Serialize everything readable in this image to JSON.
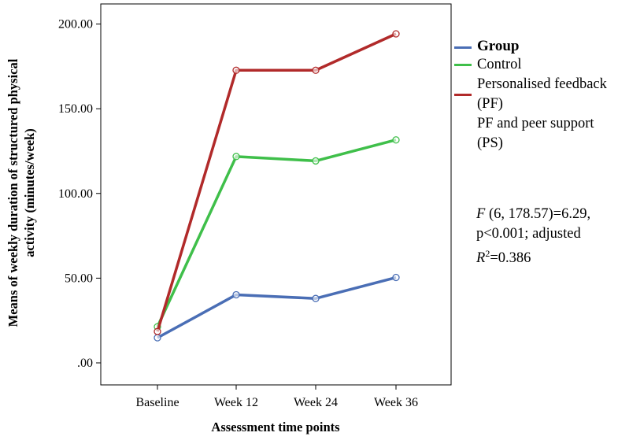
{
  "chart_data": {
    "type": "line",
    "categories": [
      "Baseline",
      "Week 12",
      "Week 24",
      "Week 36"
    ],
    "series": [
      {
        "name": "Control",
        "color": "#4a6eb5",
        "values": [
          14.8,
          40.2,
          38.0,
          50.4
        ]
      },
      {
        "name": "Personalised feedback (PF)",
        "color": "#3fbf4a",
        "values": [
          21.3,
          121.8,
          119.2,
          131.6
        ]
      },
      {
        "name": "PF and peer support (PS)",
        "color": "#b12a2a",
        "values": [
          18.5,
          172.7,
          172.7,
          194.2
        ]
      }
    ],
    "xlabel": "Assessment time points",
    "ylabel": "Means of weekly duration of structured physical activity (minutes/week)",
    "ylabel_lines": [
      "Means of weekly duration of structured physical",
      "activity (minutes/week)"
    ],
    "ylim": [
      0,
      200
    ],
    "yticks": [
      ".00",
      "50.00",
      "100.00",
      "150.00",
      "200.00"
    ],
    "legend_title": "Group",
    "legend_position": "right",
    "grid": false
  },
  "stats": {
    "f_symbol": "F",
    "f_text": " (6, 178.57)=6.29,",
    "p_text": "p<0.001; adjusted",
    "r_symbol": "R",
    "r_exp": "2",
    "r_text": "=0.386"
  }
}
